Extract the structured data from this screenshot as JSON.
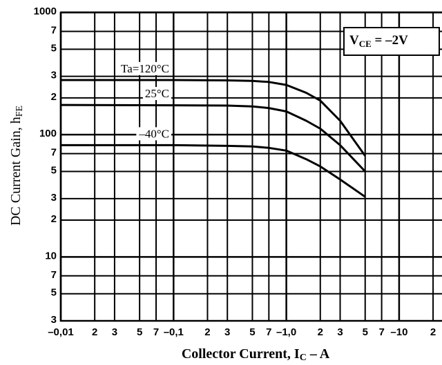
{
  "chart_data": {
    "type": "line",
    "y_label": [
      "DC Current Gain, h",
      "FE"
    ],
    "x_label": [
      "Collector Current, I",
      "C",
      " – A"
    ],
    "annotation": [
      "V",
      "CE",
      " = –2V"
    ],
    "log_x": true,
    "log_y": true,
    "grid": true,
    "xlim": [
      0.01,
      24
    ],
    "ylim": [
      3,
      1000
    ],
    "xticks": [
      {
        "value": 0.01,
        "label": "–0,01"
      },
      {
        "value": 0.02,
        "label": "2"
      },
      {
        "value": 0.03,
        "label": "3"
      },
      {
        "value": 0.05,
        "label": "5"
      },
      {
        "value": 0.07,
        "label": "7"
      },
      {
        "value": 0.1,
        "label": "–0,1"
      },
      {
        "value": 0.2,
        "label": "2"
      },
      {
        "value": 0.3,
        "label": "3"
      },
      {
        "value": 0.5,
        "label": "5"
      },
      {
        "value": 0.7,
        "label": "7"
      },
      {
        "value": 1.0,
        "label": "–1,0"
      },
      {
        "value": 2,
        "label": "2"
      },
      {
        "value": 3,
        "label": "3"
      },
      {
        "value": 5,
        "label": "5"
      },
      {
        "value": 7,
        "label": "7"
      },
      {
        "value": 10,
        "label": "–10"
      },
      {
        "value": 20,
        "label": "2"
      }
    ],
    "yticks": [
      1000,
      {
        "value": 700,
        "label": "7"
      },
      {
        "value": 500,
        "label": "5"
      },
      {
        "value": 300,
        "label": "3"
      },
      {
        "value": 200,
        "label": "2"
      },
      100,
      {
        "value": 70,
        "label": "7"
      },
      {
        "value": 50,
        "label": "5"
      },
      {
        "value": 30,
        "label": "3"
      },
      {
        "value": 20,
        "label": "2"
      },
      10,
      {
        "value": 7,
        "label": "7"
      },
      {
        "value": 5,
        "label": "5"
      },
      3
    ],
    "x": [
      0.01,
      0.1,
      0.3,
      0.5,
      0.7,
      1.0,
      1.5,
      2,
      3,
      5
    ],
    "series": [
      {
        "name": "Ta=120°C",
        "color": "#000000",
        "values": [
          280,
          280,
          278,
          275,
          270,
          255,
          220,
          190,
          130,
          67
        ]
      },
      {
        "name": "25°C",
        "color": "#000000",
        "values": [
          175,
          174,
          173,
          170,
          165,
          155,
          130,
          112,
          82,
          50
        ]
      },
      {
        "name": "–40°C",
        "color": "#000000",
        "values": [
          82,
          82,
          81,
          80,
          78,
          74,
          63,
          55,
          43,
          31
        ]
      }
    ]
  }
}
